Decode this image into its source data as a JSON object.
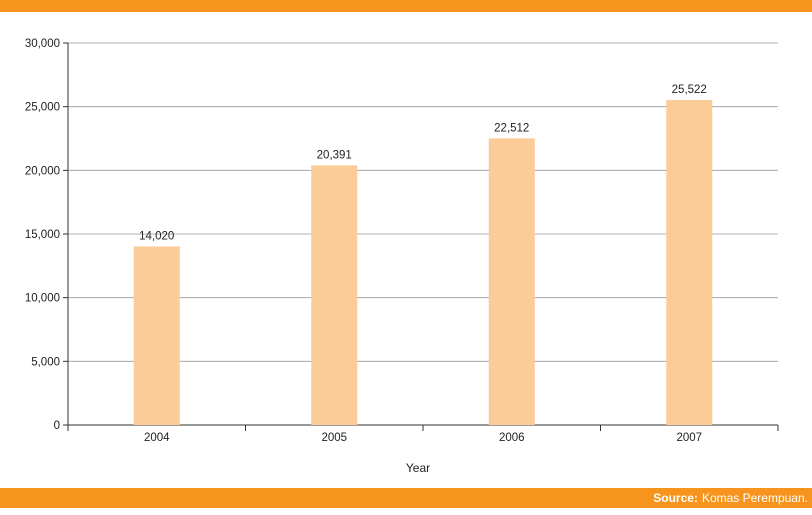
{
  "colors": {
    "accent": "#f7941d",
    "bar": "#fbcb98",
    "grid": "#9a9a9a"
  },
  "chart_data": {
    "type": "bar",
    "categories": [
      "2004",
      "2005",
      "2006",
      "2007"
    ],
    "values": [
      14020,
      20391,
      22512,
      25522
    ],
    "data_labels": [
      "14,020",
      "20,391",
      "22,512",
      "25,522"
    ],
    "xlabel": "Year",
    "ylabel": "",
    "ylim": [
      0,
      30000
    ],
    "yticks": [
      0,
      5000,
      10000,
      15000,
      20000,
      25000,
      30000
    ],
    "ytick_labels": [
      "0",
      "5,000",
      "10,000",
      "15,000",
      "20,000",
      "25,000",
      "30,000"
    ],
    "grid": true
  },
  "footer": {
    "source_label": "Source:",
    "source_text": "Komas Perempuan."
  }
}
